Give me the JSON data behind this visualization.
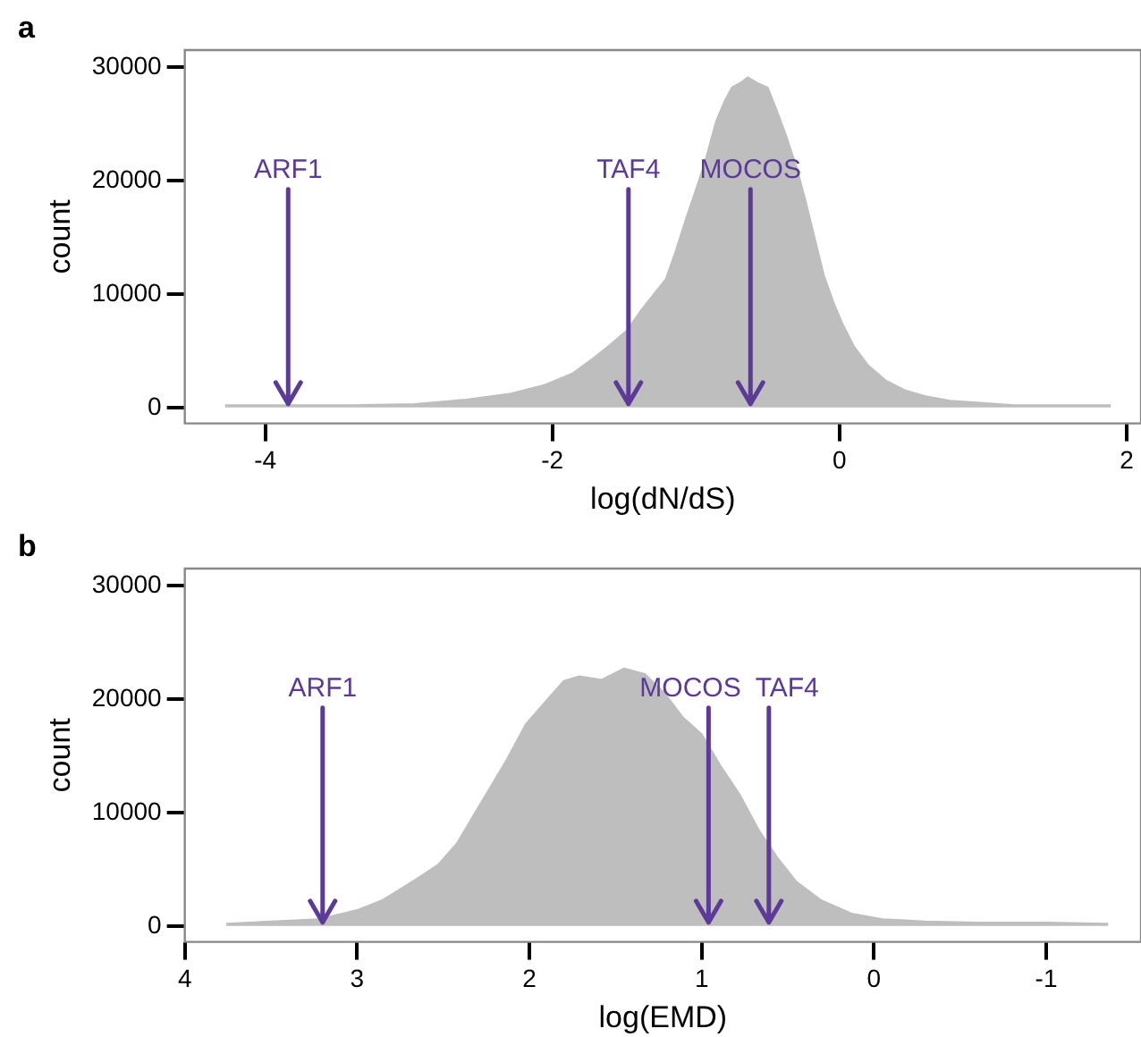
{
  "chart_data": [
    {
      "type": "area",
      "title": "a",
      "xlabel": "log(dN/dS)",
      "ylabel": "count",
      "xlim": [
        -4.56,
        2.1
      ],
      "xticks": [
        -4,
        -2,
        0,
        2
      ],
      "ylim": [
        -1400,
        31500
      ],
      "yticks": [
        0,
        10000,
        20000,
        30000
      ],
      "x": [
        -4.28,
        -3.8,
        -3.4,
        -2.96,
        -2.6,
        -2.3,
        -2.05,
        -1.86,
        -1.72,
        -1.6,
        -1.48,
        -1.38,
        -1.28,
        -1.21,
        -1.14,
        -1.07,
        -1.0,
        -0.94,
        -0.86,
        -0.8,
        -0.75,
        -0.68,
        -0.64,
        -0.57,
        -0.5,
        -0.44,
        -0.37,
        -0.3,
        -0.24,
        -0.17,
        -0.11,
        -0.04,
        0.02,
        0.1,
        0.2,
        0.32,
        0.46,
        0.6,
        0.77,
        1.0,
        1.21,
        1.5,
        1.89
      ],
      "series": [
        {
          "color": "#bebebe",
          "values": [
            200,
            200,
            200,
            300,
            700,
            1200,
            2000,
            3000,
            4300,
            5500,
            6800,
            8600,
            10200,
            11300,
            13800,
            16600,
            19200,
            21500,
            25200,
            27000,
            28200,
            28700,
            29100,
            28600,
            28200,
            26300,
            23900,
            21200,
            18400,
            14800,
            11700,
            9200,
            7400,
            5400,
            3700,
            2400,
            1500,
            1000,
            600,
            400,
            200,
            200,
            200
          ]
        }
      ],
      "annotations": [
        {
          "text": "ARF1",
          "x": -3.84,
          "y": 0
        },
        {
          "text": "TAF4",
          "x": -1.47,
          "y": 0
        },
        {
          "text": "MOCOS",
          "x": -0.62,
          "y": 0
        }
      ]
    },
    {
      "type": "area",
      "title": "b",
      "xlabel": "log(EMD)",
      "ylabel": "count",
      "xlim": [
        4,
        -1.55
      ],
      "xticks": [
        4,
        3,
        2,
        1,
        0,
        -1
      ],
      "ylim": [
        -1400,
        31500
      ],
      "yticks": [
        0,
        10000,
        20000,
        30000
      ],
      "x": [
        3.76,
        3.5,
        3.22,
        3.0,
        2.85,
        2.67,
        2.53,
        2.42,
        2.31,
        2.2,
        2.13,
        2.02,
        1.91,
        1.8,
        1.71,
        1.58,
        1.45,
        1.33,
        1.22,
        1.11,
        1.0,
        0.89,
        0.78,
        0.67,
        0.56,
        0.45,
        0.31,
        0.13,
        -0.05,
        -0.3,
        -0.6,
        -1.0,
        -1.36
      ],
      "series": [
        {
          "color": "#bebebe",
          "values": [
            200,
            400,
            600,
            1400,
            2300,
            4000,
            5400,
            7300,
            10100,
            12900,
            14700,
            17800,
            19700,
            21600,
            22000,
            21700,
            22700,
            22200,
            20600,
            18400,
            16900,
            14100,
            11600,
            8500,
            6000,
            3900,
            2300,
            1100,
            600,
            400,
            300,
            300,
            200
          ]
        }
      ],
      "annotations": [
        {
          "text": "ARF1",
          "x": 3.2,
          "y": 0
        },
        {
          "text": "MOCOS",
          "x": 0.96,
          "y": 0
        },
        {
          "text": "TAF4",
          "x": 0.61,
          "y": 0
        }
      ]
    }
  ]
}
